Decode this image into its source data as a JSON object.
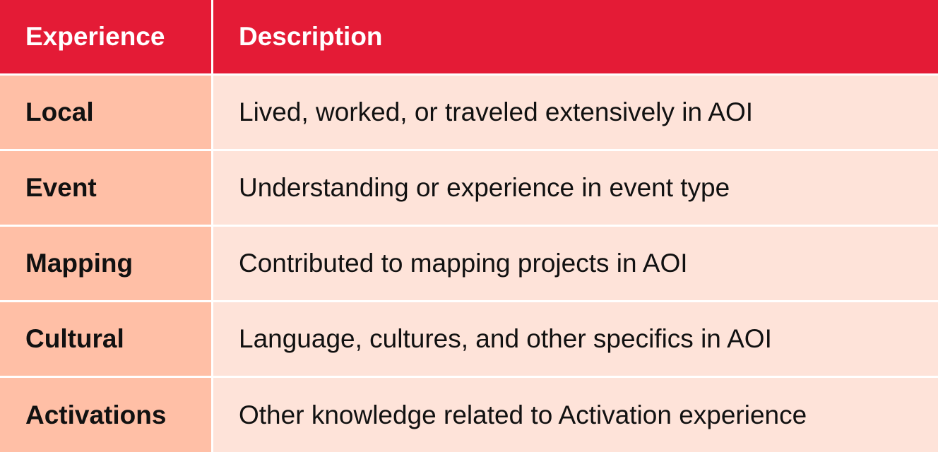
{
  "table": {
    "headers": {
      "experience": "Experience",
      "description": "Description"
    },
    "rows": [
      {
        "experience": "Local",
        "description": "Lived, worked, or traveled extensively in AOI"
      },
      {
        "experience": "Event",
        "description": "Understanding or experience in event type"
      },
      {
        "experience": "Mapping",
        "description": "Contributed to mapping projects in AOI"
      },
      {
        "experience": "Cultural",
        "description": "Language, cultures, and other specifics in AOI"
      },
      {
        "experience": "Activations",
        "description": "Other knowledge related to Activation experience"
      }
    ]
  },
  "colors": {
    "header_bg": "#e41b36",
    "key_col_bg": "#ffbfa6",
    "desc_col_bg": "#fee3d9"
  }
}
